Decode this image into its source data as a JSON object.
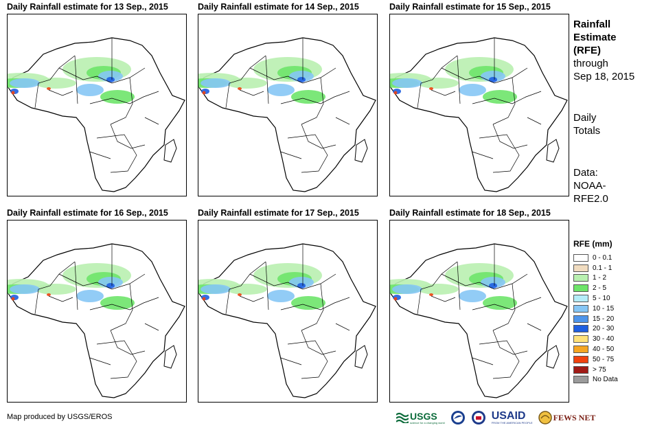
{
  "panels": [
    {
      "title": "Daily Rainfall estimate for 13 Sep., 2015"
    },
    {
      "title": "Daily Rainfall estimate for 14 Sep., 2015"
    },
    {
      "title": "Daily Rainfall estimate for 15 Sep., 2015"
    },
    {
      "title": "Daily Rainfall estimate for 16 Sep., 2015"
    },
    {
      "title": "Daily Rainfall estimate for 17 Sep., 2015"
    },
    {
      "title": "Daily Rainfall estimate for 18 Sep., 2015"
    }
  ],
  "sidebar": {
    "title_line1": "Rainfall",
    "title_line2": "Estimate",
    "title_line3": "(RFE)",
    "through_label": "through",
    "through_date": "Sep 18, 2015",
    "totals_line1": "Daily",
    "totals_line2": "Totals",
    "data_line1": "Data:",
    "data_line2": "NOAA-",
    "data_line3": "RFE2.0"
  },
  "legend": {
    "title": "RFE (mm)",
    "items": [
      {
        "label": "0 - 0.1",
        "color": "#ffffff"
      },
      {
        "label": "0.1 - 1",
        "color": "#f1dcc0"
      },
      {
        "label": "1 - 2",
        "color": "#b9f0b0"
      },
      {
        "label": "2 - 5",
        "color": "#6ee46a"
      },
      {
        "label": "5 - 10",
        "color": "#b4ecf8"
      },
      {
        "label": "10 - 15",
        "color": "#86c6f5"
      },
      {
        "label": "15 - 20",
        "color": "#4f95ea"
      },
      {
        "label": "20 - 30",
        "color": "#1f5fe0"
      },
      {
        "label": "30 - 40",
        "color": "#ffe27a"
      },
      {
        "label": "40 - 50",
        "color": "#f5a623"
      },
      {
        "label": "50 - 75",
        "color": "#f0420f"
      },
      {
        "label": "> 75",
        "color": "#a01a16"
      },
      {
        "label": "No Data",
        "color": "#9b9b9b"
      }
    ]
  },
  "credit": "Map produced by USGS/EROS",
  "logos": {
    "usgs": "USGS",
    "usgs_tagline": "science for a changing world",
    "usaid": "USAID",
    "usaid_tagline": "FROM THE AMERICAN PEOPLE",
    "fewsnet": "FEWS NET"
  }
}
